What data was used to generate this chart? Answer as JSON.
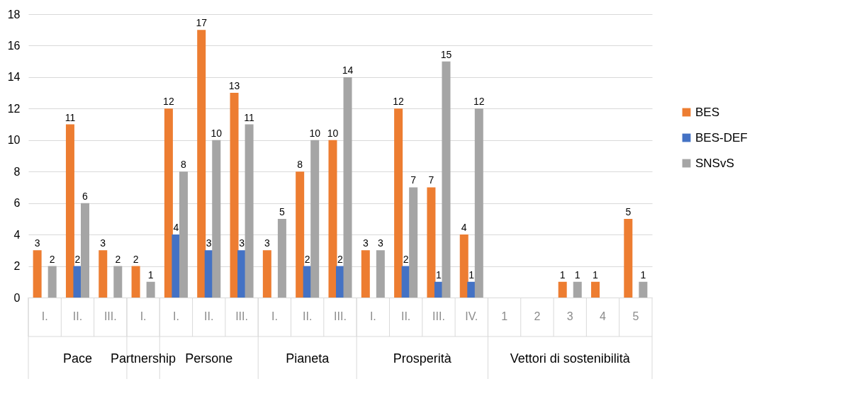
{
  "chart_data": {
    "type": "bar",
    "categories": [
      "I.",
      "II.",
      "III.",
      "I.",
      "I.",
      "II.",
      "III.",
      "I.",
      "II.",
      "III.",
      "I.",
      "II.",
      "III.",
      "IV.",
      "1",
      "2",
      "3",
      "4",
      "5"
    ],
    "series": [
      {
        "name": "BES",
        "color": "#ed7d31",
        "values": [
          3,
          11,
          3,
          2,
          12,
          17,
          13,
          3,
          8,
          10,
          3,
          12,
          7,
          4,
          null,
          null,
          1,
          1,
          5
        ]
      },
      {
        "name": "BES-DEF",
        "color": "#4472c4",
        "values": [
          null,
          2,
          null,
          null,
          4,
          3,
          3,
          null,
          2,
          2,
          null,
          2,
          1,
          1,
          null,
          null,
          null,
          null,
          null
        ]
      },
      {
        "name": "SNSvS",
        "color": "#a5a5a5",
        "values": [
          2,
          6,
          2,
          1,
          8,
          10,
          11,
          5,
          10,
          14,
          3,
          7,
          15,
          12,
          null,
          null,
          1,
          null,
          1
        ]
      }
    ],
    "annotations": [
      "Pace",
      "Partnership",
      "Persone",
      "Pianeta",
      "Prosperità",
      "Vettori di sostenibilità"
    ],
    "ylim": [
      0,
      18
    ],
    "yticks": [
      0,
      2,
      4,
      6,
      8,
      10,
      12,
      14,
      16,
      18
    ],
    "grid": "y",
    "legend": "right",
    "data_labels": true
  }
}
